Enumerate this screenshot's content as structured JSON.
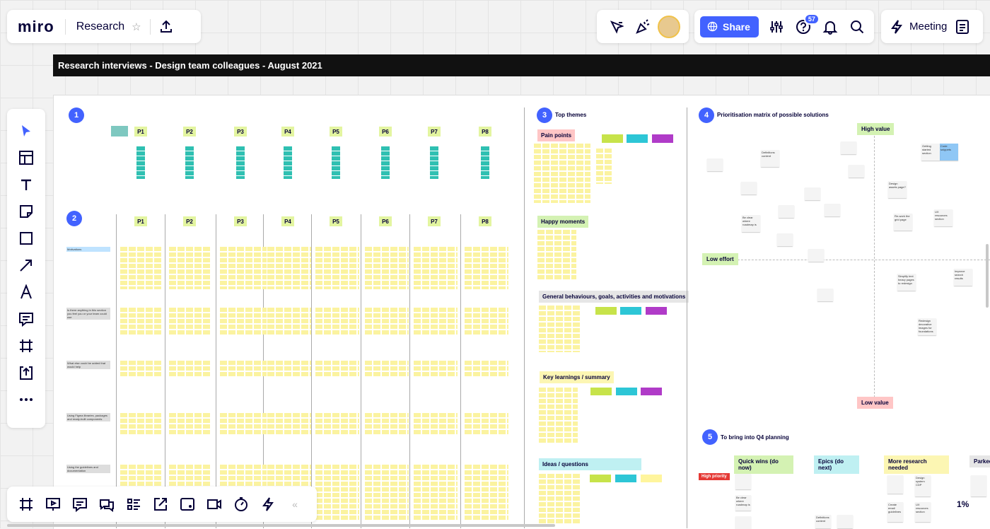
{
  "app": {
    "logo": "miro",
    "board_title": "Research"
  },
  "topbar": {
    "share_label": "Share",
    "help_count": "57",
    "meeting_label": "Meeting"
  },
  "banner": "Research interviews - Design team colleagues - August 2021",
  "sections": {
    "s1": {
      "num": "1"
    },
    "s2": {
      "num": "2"
    },
    "s3": {
      "num": "3",
      "title": "Top themes"
    },
    "s4": {
      "num": "4",
      "title": "Prioritisation matrix of possible solutions"
    },
    "s5": {
      "num": "5",
      "title": "To bring into Q4 planning"
    }
  },
  "participants": [
    "P1",
    "P2",
    "P3",
    "P4",
    "P5",
    "P6",
    "P7",
    "P8"
  ],
  "row_labels": [
    "Motivations",
    "Is there anything in this section you feel you or your team could use",
    "What else could be added that would help",
    "Using Figma libraries, packages and ready-built components",
    "Using the guidelines and documentation"
  ],
  "themes": [
    "Pain points",
    "Happy moments",
    "General behaviours, goals, activities and motivations",
    "Key learnings / summary",
    "Ideas / questions"
  ],
  "matrix": {
    "high": "High value",
    "low": "Low value",
    "low_effort": "Low effort",
    "notes": [
      "Definitions content",
      "Code snippets",
      "Getting started section",
      "Design assets page?",
      "Re-work the grid page",
      "UX resources section",
      "Be clear where roadmap is",
      "Improve search results",
      "Simplify text heavy pages to redesign",
      "Redesign decorative images for foundations"
    ]
  },
  "planning": {
    "cols": [
      "Quick wins (do now)",
      "Epics (do next)",
      "More research needed",
      "Parked"
    ],
    "priority": "High priority",
    "notes": [
      "Be clear where roadmap is",
      "Design system CDP",
      "Create email guidelines",
      "UX resources section",
      "Definitions content"
    ]
  },
  "zoom": "1%",
  "colors": {
    "accent": "#4262ff",
    "sticky": "#fbf3a0",
    "teal": "#2fc0b2"
  }
}
